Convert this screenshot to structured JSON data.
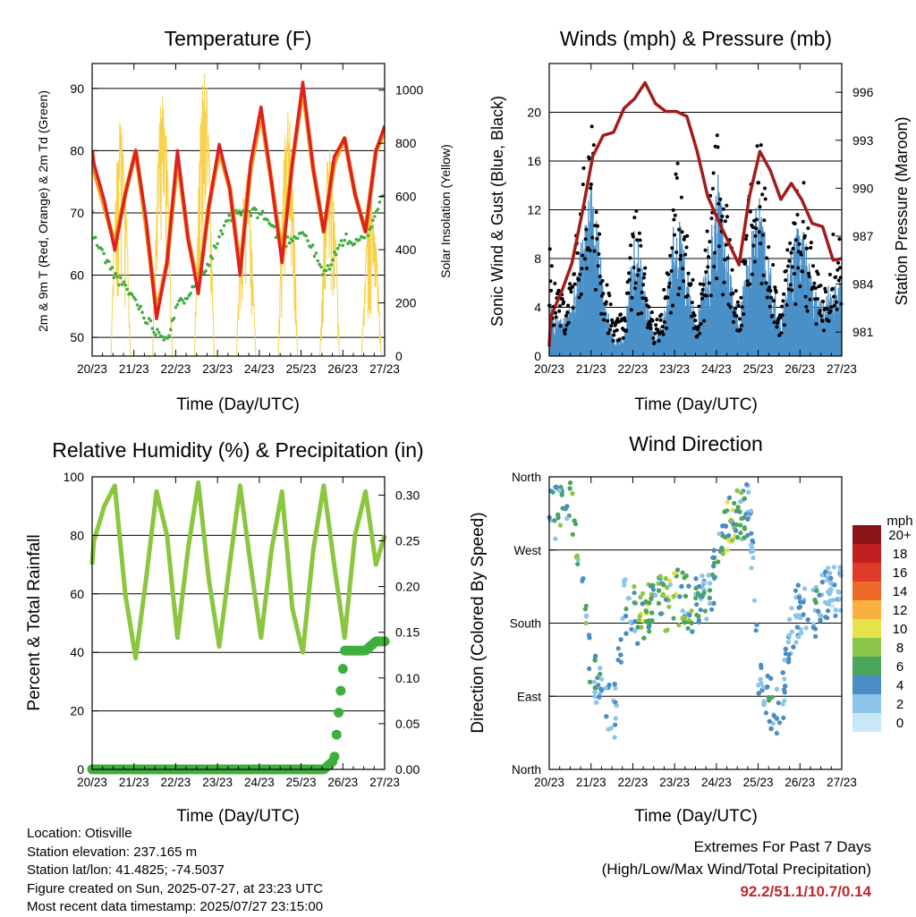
{
  "x_ticks": [
    "20/23",
    "21/23",
    "22/23",
    "23/23",
    "24/23",
    "25/23",
    "26/23",
    "27/23"
  ],
  "x_label": "Time (Day/UTC)",
  "colors": {
    "temp_9m": "#f0a020",
    "temp_2m": "#dd2020",
    "dewpoint": "#3fae3f",
    "solar": "#f7d24a",
    "wind": "#4a90c8",
    "gust": "#000000",
    "pressure": "#a21c1c",
    "rh": "#8ac640",
    "precip": "#3fae3f"
  },
  "panels": {
    "temperature": {
      "title": "Temperature (F)",
      "ylabel_left": "2m & 9m T (Red, Orange) & 2m Td (Green)",
      "ylabel_right": "Solar Insolation (Yellow)",
      "left_ticks": [
        "50",
        "60",
        "70",
        "80",
        "90"
      ],
      "right_ticks": [
        "0",
        "200",
        "400",
        "600",
        "800",
        "1000"
      ]
    },
    "winds": {
      "title": "Winds (mph) & Pressure (mb)",
      "ylabel_left": "Sonic Wind & Gust (Blue, Black)",
      "ylabel_right": "Station Pressure (Maroon)",
      "left_ticks": [
        "0",
        "4",
        "8",
        "12",
        "16",
        "20"
      ],
      "right_ticks": [
        "981",
        "984",
        "987",
        "990",
        "993",
        "996"
      ]
    },
    "humidity": {
      "title": "Relative Humidity (%) & Precipitation (in)",
      "ylabel_left": "Percent & Total Rainfall",
      "left_ticks": [
        "0",
        "20",
        "40",
        "60",
        "80",
        "100"
      ],
      "right_ticks": [
        "0.00",
        "0.05",
        "0.10",
        "0.15",
        "0.20",
        "0.25",
        "0.30"
      ]
    },
    "direction": {
      "title": "Wind Direction",
      "ylabel_left": "Direction (Colored By Speed)",
      "left_ticks": [
        "North",
        "East",
        "South",
        "West",
        "North"
      ],
      "legend_title": "mph",
      "legend_labels": [
        "0",
        "2",
        "4",
        "6",
        "8",
        "10",
        "12",
        "14",
        "16",
        "18",
        "20+"
      ],
      "legend_colors": [
        "#c8e8f8",
        "#8cc4ea",
        "#4a8cc4",
        "#4aa65a",
        "#8cc64a",
        "#e6e24a",
        "#f8b040",
        "#ee6a2a",
        "#e03a28",
        "#c01f22",
        "#8c1418"
      ]
    }
  },
  "info": {
    "location": "Location: Otisville",
    "elevation": "Station elevation: 237.165 m",
    "latlon": "Station lat/lon: 41.4825; -74.5037",
    "created": "Figure created on Sun, 2025-07-27, at 23:23 UTC",
    "recent": "Most recent data timestamp: 2025/07/27 23:15:00"
  },
  "extremes": {
    "title": "Extremes For Past 7 Days",
    "subtitle": "(High/Low/Max Wind/Total Precipitation)",
    "values": "92.2/51.1/10.7/0.14"
  },
  "chart_data": [
    {
      "type": "line",
      "title": "Temperature (F)",
      "xlabel": "Time (Day/UTC)",
      "ylabel": "2m & 9m T (Red, Orange) & 2m Td (Green)",
      "ylabel_right": "Solar Insolation (Yellow)",
      "x": [
        "20/23",
        "21/00",
        "21/06",
        "21/12",
        "21/18",
        "22/00",
        "22/06",
        "22/12",
        "22/18",
        "23/00",
        "23/06",
        "23/12",
        "23/18",
        "24/00",
        "24/06",
        "24/12",
        "24/18",
        "25/00",
        "25/06",
        "25/12",
        "25/18",
        "26/00",
        "26/06",
        "26/12",
        "26/18",
        "27/00",
        "27/06",
        "27/12",
        "27/18",
        "27/23"
      ],
      "ylim": [
        47,
        94
      ],
      "ylim_right": [
        0,
        1100
      ],
      "series": [
        {
          "name": "2m T",
          "axis": "left",
          "values": [
            80,
            78,
            72,
            64,
            73,
            80,
            69,
            53,
            62,
            80,
            66,
            57,
            71,
            81,
            74,
            60,
            78,
            87,
            75,
            62,
            78,
            91,
            77,
            67,
            79,
            82,
            73,
            67,
            80,
            84
          ]
        },
        {
          "name": "9m T",
          "axis": "left",
          "values": [
            80,
            77,
            71,
            65,
            73,
            80,
            68,
            54,
            62,
            79,
            66,
            58,
            71,
            80,
            74,
            61,
            77,
            86,
            75,
            63,
            78,
            90,
            77,
            67,
            78,
            82,
            73,
            67,
            80,
            83
          ]
        },
        {
          "name": "2m Td",
          "axis": "left",
          "values": [
            70,
            66,
            63,
            60,
            58,
            56,
            53,
            51,
            50,
            55,
            57,
            60,
            62,
            66,
            69,
            70,
            70,
            70,
            68,
            65,
            66,
            67,
            64,
            60,
            63,
            66,
            65,
            66,
            70,
            74
          ]
        },
        {
          "name": "Solar Insolation",
          "axis": "right",
          "values": [
            0,
            0,
            0,
            0,
            900,
            0,
            0,
            0,
            1050,
            0,
            0,
            0,
            1100,
            0,
            0,
            0,
            700,
            0,
            0,
            0,
            950,
            0,
            0,
            0,
            800,
            0,
            0,
            0,
            600,
            0
          ]
        }
      ]
    },
    {
      "type": "line",
      "title": "Winds (mph) & Pressure (mb)",
      "xlabel": "Time (Day/UTC)",
      "ylabel": "Sonic Wind & Gust (Blue, Black)",
      "ylabel_right": "Station Pressure (Maroon)",
      "x": [
        "20/23",
        "21/00",
        "21/06",
        "21/12",
        "21/18",
        "22/00",
        "22/06",
        "22/12",
        "22/18",
        "23/00",
        "23/06",
        "23/12",
        "23/18",
        "24/00",
        "24/06",
        "24/12",
        "24/18",
        "25/00",
        "25/06",
        "25/12",
        "25/18",
        "26/00",
        "26/06",
        "26/12",
        "26/18",
        "27/00",
        "27/06",
        "27/12",
        "27/18",
        "27/23"
      ],
      "ylim": [
        0,
        24
      ],
      "ylim_right": [
        979.5,
        997.8
      ],
      "series": [
        {
          "name": "Sonic Wind",
          "axis": "left",
          "values": [
            4,
            3,
            2,
            3,
            7,
            10,
            4,
            1,
            1,
            8,
            4,
            1,
            3,
            9,
            5,
            2,
            6,
            10,
            6,
            2,
            7,
            9,
            5,
            2,
            6,
            8,
            4,
            3,
            5,
            4
          ]
        },
        {
          "name": "Gust",
          "axis": "left",
          "values": [
            8,
            6,
            4,
            5,
            12,
            15,
            7,
            2,
            3,
            10,
            6,
            2,
            5,
            13,
            8,
            3,
            9,
            15,
            9,
            3,
            11,
            14,
            8,
            3,
            9,
            12,
            7,
            4,
            9,
            8
          ]
        },
        {
          "name": "Station Pressure",
          "axis": "right",
          "values": [
            980.1,
            982,
            983.5,
            985.3,
            988.5,
            992,
            993.3,
            993.5,
            995,
            995.6,
            996.6,
            995.3,
            994.8,
            994.8,
            994.5,
            992.3,
            989.5,
            988,
            986.6,
            985.2,
            989.5,
            992.3,
            991.1,
            989.3,
            990.3,
            989.3,
            987.8,
            987.6,
            985.5,
            985.6
          ]
        }
      ]
    },
    {
      "type": "line",
      "title": "Relative Humidity (%) & Precipitation (in)",
      "xlabel": "Time (Day/UTC)",
      "ylabel": "Percent & Total Rainfall",
      "x": [
        "20/23",
        "21/00",
        "21/06",
        "21/12",
        "21/18",
        "22/00",
        "22/06",
        "22/12",
        "22/18",
        "23/00",
        "23/06",
        "23/12",
        "23/18",
        "24/00",
        "24/06",
        "24/12",
        "24/18",
        "25/00",
        "25/06",
        "25/12",
        "25/18",
        "26/00",
        "26/06",
        "26/12",
        "26/18",
        "27/00",
        "27/06",
        "27/12",
        "27/18",
        "27/23"
      ],
      "ylim": [
        0,
        100
      ],
      "ylim_right": [
        0,
        0.32
      ],
      "series": [
        {
          "name": "Relative Humidity",
          "axis": "left",
          "values": [
            70,
            78,
            90,
            97,
            60,
            38,
            65,
            95,
            80,
            45,
            75,
            98,
            65,
            42,
            70,
            97,
            70,
            45,
            75,
            95,
            55,
            40,
            75,
            97,
            70,
            45,
            80,
            95,
            70,
            80
          ]
        },
        {
          "name": "Total Precipitation",
          "axis": "right",
          "values": [
            0,
            0,
            0,
            0,
            0,
            0,
            0,
            0,
            0,
            0,
            0,
            0,
            0,
            0,
            0,
            0,
            0,
            0,
            0,
            0,
            0,
            0,
            0,
            0,
            0.01,
            0.13,
            0.13,
            0.13,
            0.14,
            0.14
          ]
        }
      ]
    },
    {
      "type": "scatter",
      "title": "Wind Direction",
      "xlabel": "Time (Day/UTC)",
      "ylabel": "Direction (Colored By Speed)",
      "x": [
        "21/00",
        "21/06",
        "21/12",
        "22/00",
        "22/06",
        "22/12",
        "22/18",
        "23/00",
        "23/06",
        "23/12",
        "23/18",
        "24/00",
        "24/06",
        "24/12",
        "24/18",
        "25/00",
        "25/06",
        "25/12",
        "25/18",
        "26/00",
        "26/06",
        "26/12",
        "26/18",
        "27/00",
        "27/06",
        "27/12",
        "27/18"
      ],
      "y_categories": [
        "North",
        "East",
        "South",
        "West",
        "North"
      ],
      "ylim": [
        0,
        360
      ],
      "series": [
        {
          "name": "Direction",
          "values": [
            310,
            320,
            330,
            110,
            90,
            60,
            200,
            190,
            185,
            210,
            200,
            215,
            205,
            200,
            210,
            260,
            300,
            310,
            320,
            100,
            80,
            60,
            180,
            200,
            190,
            210,
            220
          ]
        },
        {
          "name": "Speed",
          "values": [
            4,
            7,
            8,
            5,
            4,
            3,
            4,
            7,
            9,
            6,
            8,
            9,
            7,
            6,
            4,
            6,
            9,
            8,
            3,
            4,
            6,
            5,
            3,
            4,
            5,
            4,
            3
          ]
        }
      ],
      "legend_title": "mph"
    }
  ]
}
